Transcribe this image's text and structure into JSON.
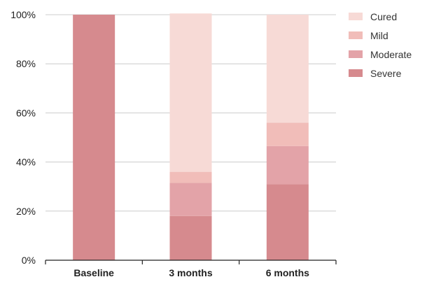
{
  "chart_data": {
    "type": "bar",
    "stacked": true,
    "title": "",
    "xlabel": "",
    "ylabel": "",
    "categories": [
      "Baseline",
      "3 months",
      "6 months"
    ],
    "ylim": [
      0,
      100
    ],
    "y_ticks": [
      0,
      20,
      40,
      60,
      80,
      100
    ],
    "y_tick_format": "{v}%",
    "grid": true,
    "legend_position": "top-right",
    "series": [
      {
        "name": "Severe",
        "color": "#d68a8e",
        "values": [
          100,
          18,
          31
        ]
      },
      {
        "name": "Moderate",
        "color": "#e3a3a8",
        "values": [
          0,
          13.5,
          15.5
        ]
      },
      {
        "name": "Mild",
        "color": "#f1bdb9",
        "values": [
          0,
          4.5,
          9.5
        ]
      },
      {
        "name": "Cured",
        "color": "#f7dad6",
        "values": [
          0,
          64.5,
          44
        ]
      }
    ],
    "legend_order": [
      "Cured",
      "Mild",
      "Moderate",
      "Severe"
    ]
  }
}
